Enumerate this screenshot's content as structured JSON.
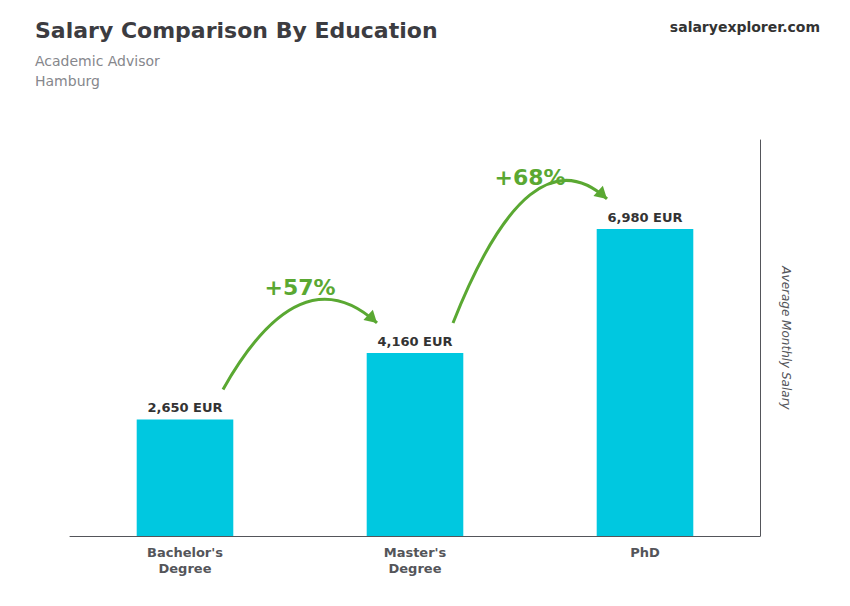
{
  "chart_data": {
    "type": "bar",
    "title": "Salary Comparison By Education",
    "subtitle": "Academic Advisor\nHamburg",
    "ylabel": "Average Monthly Salary",
    "categories": [
      "Bachelor's\nDegree",
      "Master's\nDegree",
      "PhD"
    ],
    "values": [
      2650,
      4160,
      6980
    ],
    "value_labels": [
      "2,650 EUR",
      "4,160 EUR",
      "6,980 EUR"
    ],
    "data_labels": true,
    "color": "#00c8e0",
    "ylim": [
      0,
      9000
    ],
    "grid": false,
    "tick_labels": "x",
    "annotations": [
      {
        "text": "salaryexplorer.com"
      },
      {
        "text": "+57%",
        "from": "Bachelor's\nDegree",
        "to": "Master's\nDegree"
      },
      {
        "text": "+68%",
        "from": "Master's\nDegree",
        "to": "PhD"
      }
    ]
  }
}
